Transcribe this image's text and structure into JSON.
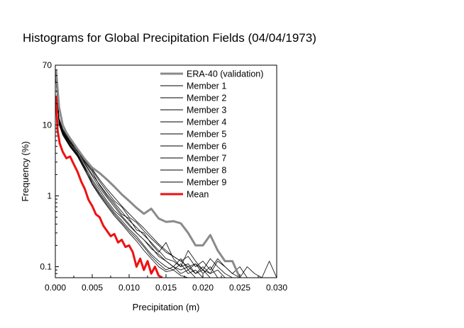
{
  "chart_data": {
    "type": "line",
    "title": "Histograms for Global Precipitation Fields (04/04/1973)",
    "xlabel": "Precipitation (m)",
    "ylabel": "Frequency (%)",
    "xscale": "linear",
    "yscale": "log",
    "xlim": [
      0,
      0.03
    ],
    "ylim": [
      0.07,
      70
    ],
    "x_ticks": [
      0,
      0.005,
      0.01,
      0.015,
      0.02,
      0.025,
      0.03
    ],
    "x_tick_labels": [
      "0.000",
      "0.005",
      "0.010",
      "0.015",
      "0.020",
      "0.025",
      "0.030"
    ],
    "y_ticks": [
      0.1,
      1,
      10,
      70
    ],
    "y_tick_labels": [
      "0.1",
      "1",
      "10",
      "70"
    ],
    "legend_position": "top-right",
    "series": [
      {
        "name": "ERA-40 (validation)",
        "color": "#8a8a8a",
        "width": "thick",
        "x": [
          0.0001,
          0.0005,
          0.001,
          0.0015,
          0.002,
          0.003,
          0.004,
          0.005,
          0.006,
          0.007,
          0.008,
          0.009,
          0.01,
          0.011,
          0.012,
          0.013,
          0.014,
          0.015,
          0.016,
          0.017,
          0.018,
          0.019,
          0.02,
          0.021,
          0.022,
          0.023,
          0.024,
          0.025
        ],
        "y": [
          60,
          18,
          10,
          7.8,
          6.5,
          4.6,
          3.3,
          2.5,
          2.1,
          1.7,
          1.35,
          1.05,
          0.85,
          0.68,
          0.56,
          0.66,
          0.48,
          0.43,
          0.44,
          0.41,
          0.3,
          0.2,
          0.2,
          0.28,
          0.17,
          0.12,
          0.12,
          0.07
        ]
      },
      {
        "name": "Member 1",
        "color": "#000000",
        "width": "thin",
        "x": [
          0.0001,
          0.0005,
          0.001,
          0.002,
          0.003,
          0.004,
          0.005,
          0.006,
          0.007,
          0.008,
          0.009,
          0.01,
          0.011,
          0.012,
          0.013,
          0.014,
          0.015,
          0.016,
          0.017,
          0.018,
          0.019,
          0.02,
          0.021,
          0.022,
          0.023,
          0.024
        ],
        "y": [
          45,
          12,
          8.5,
          5.8,
          4.5,
          3.0,
          2.2,
          1.4,
          1.0,
          0.75,
          0.55,
          0.48,
          0.33,
          0.3,
          0.21,
          0.16,
          0.22,
          0.13,
          0.1,
          0.17,
          0.12,
          0.09,
          0.13,
          0.1,
          0.08,
          0.07
        ]
      },
      {
        "name": "Member 2",
        "color": "#000000",
        "width": "thin",
        "x": [
          0.0001,
          0.0005,
          0.001,
          0.002,
          0.003,
          0.004,
          0.005,
          0.006,
          0.007,
          0.008,
          0.009,
          0.01,
          0.011,
          0.012,
          0.013,
          0.014,
          0.015,
          0.016,
          0.017,
          0.018,
          0.019,
          0.02,
          0.021,
          0.022
        ],
        "y": [
          48,
          11,
          7.8,
          5.2,
          3.9,
          2.6,
          1.7,
          1.2,
          0.85,
          0.62,
          0.5,
          0.38,
          0.3,
          0.24,
          0.18,
          0.15,
          0.12,
          0.1,
          0.13,
          0.09,
          0.11,
          0.08,
          0.1,
          0.07
        ]
      },
      {
        "name": "Member 3",
        "color": "#000000",
        "width": "thin",
        "x": [
          0.0001,
          0.0005,
          0.001,
          0.002,
          0.003,
          0.004,
          0.005,
          0.006,
          0.007,
          0.008,
          0.009,
          0.01,
          0.011,
          0.012,
          0.013,
          0.014,
          0.015,
          0.016,
          0.017,
          0.018,
          0.019,
          0.02
        ],
        "y": [
          50,
          10.5,
          7.5,
          5.0,
          3.7,
          2.4,
          1.6,
          1.1,
          0.8,
          0.58,
          0.45,
          0.34,
          0.27,
          0.2,
          0.15,
          0.12,
          0.1,
          0.09,
          0.11,
          0.08,
          0.09,
          0.07
        ]
      },
      {
        "name": "Member 4",
        "color": "#000000",
        "width": "thin",
        "x": [
          0.0001,
          0.0005,
          0.001,
          0.002,
          0.003,
          0.004,
          0.005,
          0.006,
          0.007,
          0.008,
          0.009,
          0.01,
          0.011,
          0.012,
          0.013,
          0.014,
          0.015,
          0.016,
          0.017,
          0.018,
          0.019,
          0.02,
          0.021,
          0.022,
          0.023,
          0.024,
          0.025,
          0.026,
          0.027,
          0.028,
          0.029,
          0.03
        ],
        "y": [
          42,
          11.5,
          8.0,
          5.6,
          4.2,
          3.1,
          2.3,
          1.6,
          1.15,
          0.85,
          0.7,
          0.5,
          0.42,
          0.32,
          0.25,
          0.2,
          0.16,
          0.14,
          0.12,
          0.1,
          0.11,
          0.09,
          0.08,
          0.12,
          0.1,
          0.08,
          0.07,
          0.1,
          0.08,
          0.07,
          0.12,
          0.07
        ]
      },
      {
        "name": "Member 5",
        "color": "#000000",
        "width": "thin",
        "x": [
          0.0001,
          0.0005,
          0.001,
          0.002,
          0.003,
          0.004,
          0.005,
          0.006,
          0.007,
          0.008,
          0.009,
          0.01,
          0.011,
          0.012,
          0.013,
          0.014,
          0.015,
          0.016,
          0.017,
          0.018,
          0.019
        ],
        "y": [
          46,
          10.8,
          7.6,
          5.1,
          3.8,
          2.5,
          1.5,
          1.05,
          0.75,
          0.55,
          0.42,
          0.32,
          0.25,
          0.19,
          0.14,
          0.11,
          0.09,
          0.1,
          0.08,
          0.09,
          0.07
        ]
      },
      {
        "name": "Member 6",
        "color": "#000000",
        "width": "thin",
        "x": [
          0.0001,
          0.0005,
          0.001,
          0.002,
          0.003,
          0.004,
          0.005,
          0.006,
          0.007,
          0.008,
          0.009,
          0.01,
          0.011,
          0.012,
          0.013,
          0.014,
          0.015,
          0.016,
          0.017,
          0.018,
          0.019,
          0.02,
          0.021
        ],
        "y": [
          44,
          11.2,
          7.9,
          5.4,
          4.0,
          2.8,
          1.9,
          1.3,
          0.95,
          0.7,
          0.52,
          0.4,
          0.3,
          0.24,
          0.19,
          0.14,
          0.12,
          0.1,
          0.09,
          0.1,
          0.08,
          0.09,
          0.07
        ]
      },
      {
        "name": "Member 7",
        "color": "#000000",
        "width": "thin",
        "x": [
          0.0001,
          0.0005,
          0.001,
          0.002,
          0.003,
          0.004,
          0.005,
          0.006,
          0.007,
          0.008,
          0.009,
          0.01,
          0.011,
          0.012,
          0.013,
          0.014,
          0.015,
          0.016,
          0.017,
          0.018,
          0.019,
          0.02,
          0.021,
          0.022,
          0.023
        ],
        "y": [
          47,
          11.8,
          8.2,
          5.7,
          4.3,
          2.9,
          2.0,
          1.45,
          1.05,
          0.8,
          0.6,
          0.45,
          0.36,
          0.28,
          0.22,
          0.17,
          0.13,
          0.12,
          0.1,
          0.11,
          0.08,
          0.1,
          0.08,
          0.09,
          0.07
        ]
      },
      {
        "name": "Member 8",
        "color": "#000000",
        "width": "thin",
        "x": [
          0.0001,
          0.0005,
          0.001,
          0.002,
          0.003,
          0.004,
          0.005,
          0.006,
          0.007,
          0.008,
          0.009,
          0.01,
          0.011,
          0.012,
          0.013,
          0.014,
          0.015,
          0.016,
          0.017,
          0.018,
          0.019,
          0.02,
          0.021,
          0.022,
          0.023,
          0.024,
          0.025,
          0.026
        ],
        "y": [
          43,
          12.5,
          8.8,
          6.0,
          4.6,
          3.2,
          2.4,
          1.7,
          1.25,
          0.95,
          0.72,
          0.56,
          0.44,
          0.35,
          0.27,
          0.21,
          0.17,
          0.14,
          0.12,
          0.14,
          0.1,
          0.12,
          0.09,
          0.13,
          0.1,
          0.08,
          0.1,
          0.07
        ]
      },
      {
        "name": "Member 9",
        "color": "#000000",
        "width": "thin",
        "x": [
          0.0001,
          0.0005,
          0.001,
          0.002,
          0.003,
          0.004,
          0.005,
          0.006,
          0.007,
          0.008,
          0.009,
          0.01,
          0.011,
          0.012,
          0.013,
          0.014,
          0.015,
          0.016,
          0.017,
          0.018
        ],
        "y": [
          49,
          10.2,
          7.2,
          4.9,
          3.6,
          2.3,
          1.45,
          1.0,
          0.72,
          0.52,
          0.4,
          0.3,
          0.23,
          0.17,
          0.13,
          0.1,
          0.085,
          0.09,
          0.075,
          0.07
        ]
      },
      {
        "name": "Mean",
        "color": "#ee1111",
        "width": "thick",
        "x": [
          0.0001,
          0.0003,
          0.0006,
          0.001,
          0.0015,
          0.002,
          0.0025,
          0.003,
          0.0035,
          0.004,
          0.0045,
          0.005,
          0.0055,
          0.006,
          0.0065,
          0.007,
          0.0075,
          0.008,
          0.0085,
          0.009,
          0.0095,
          0.01,
          0.0105,
          0.011,
          0.0115,
          0.012,
          0.0125,
          0.013,
          0.0135,
          0.014,
          0.0145
        ],
        "y": [
          26,
          8.5,
          5.5,
          4.2,
          3.4,
          3.6,
          2.8,
          2.2,
          1.6,
          1.25,
          0.88,
          0.72,
          0.55,
          0.5,
          0.38,
          0.32,
          0.27,
          0.29,
          0.22,
          0.24,
          0.19,
          0.2,
          0.16,
          0.1,
          0.13,
          0.09,
          0.12,
          0.08,
          0.1,
          0.075,
          0.07
        ]
      }
    ]
  }
}
